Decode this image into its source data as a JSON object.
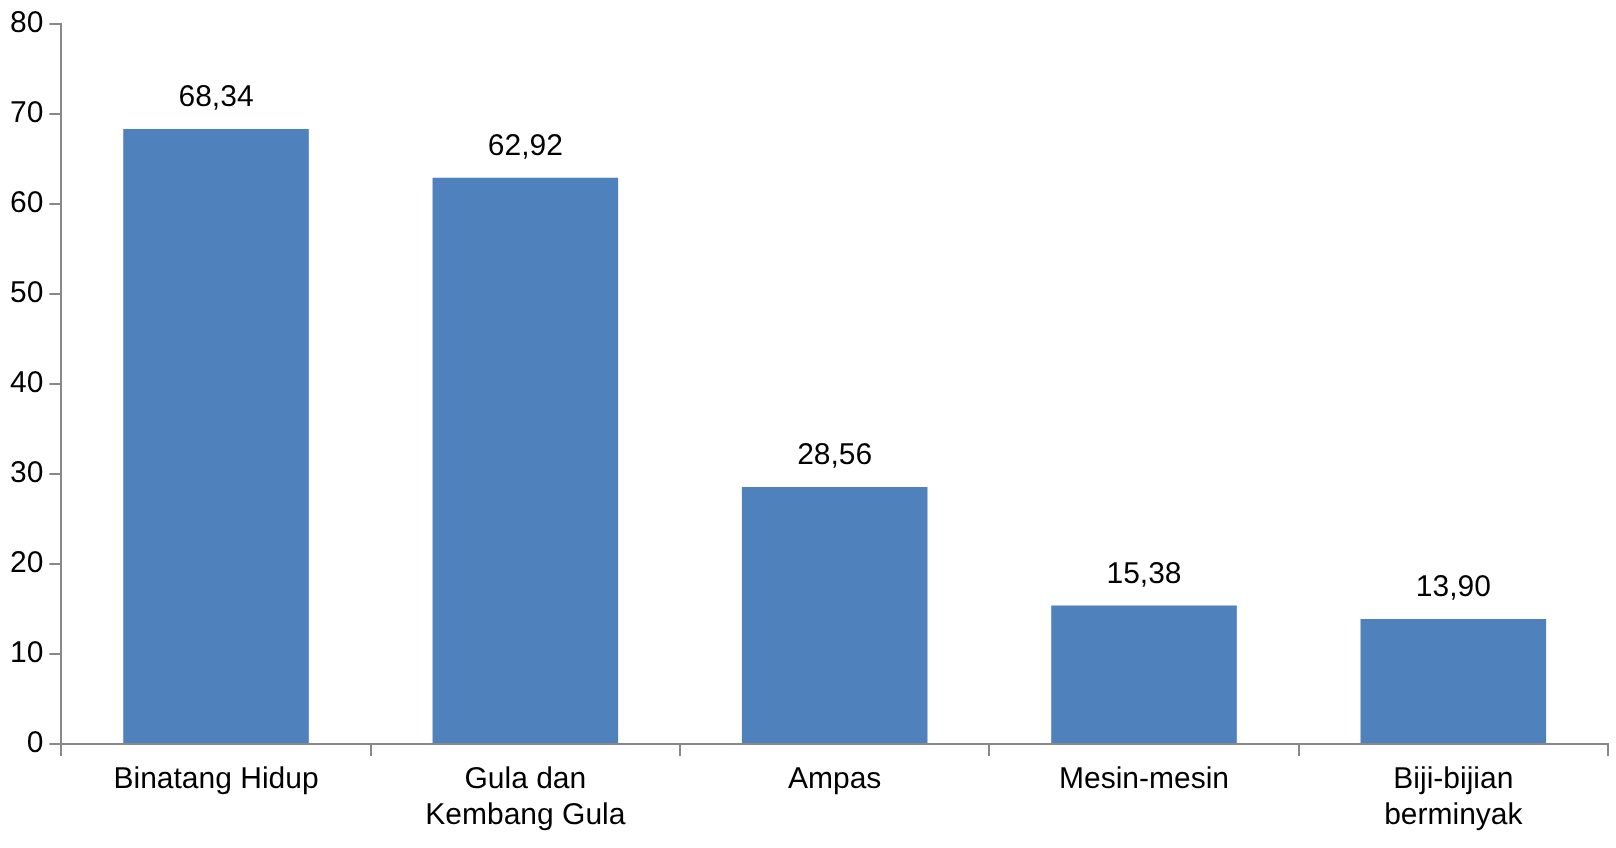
{
  "chart_data": {
    "type": "bar",
    "categories": [
      "Binatang Hidup",
      "Gula dan Kembang Gula",
      "Ampas",
      "Mesin-mesin",
      "Biji-bijian berminyak"
    ],
    "values": [
      68.34,
      62.92,
      28.56,
      15.38,
      13.9
    ],
    "value_labels": [
      "68,34",
      "62,92",
      "28,56",
      "15,38",
      "13,90"
    ],
    "color": "#4f81bd",
    "ylim": [
      0,
      80
    ],
    "yticks": [
      0,
      10,
      20,
      30,
      40,
      50,
      60,
      70,
      80
    ],
    "grid": false,
    "legend": false
  }
}
